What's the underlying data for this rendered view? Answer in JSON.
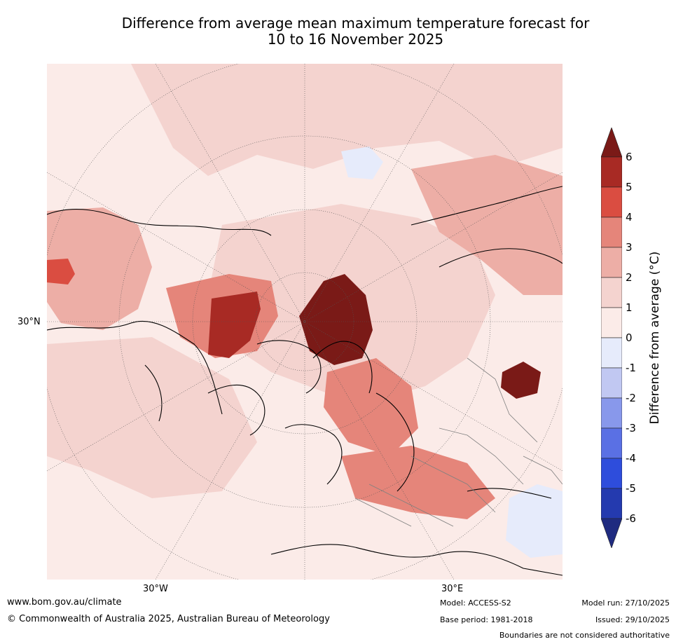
{
  "title": {
    "line1": "Difference from average mean maximum temperature forecast for",
    "line2": "10 to 16 November 2025"
  },
  "map": {
    "lat_label": "30°N",
    "lon_labels": [
      "30°W",
      "30°E"
    ],
    "land_outline_color": "#000000",
    "border_color": "#808080",
    "regions": [
      {
        "name": "north-pacific-anomaly",
        "class": 1
      },
      {
        "name": "central-arctic-anomaly",
        "class": 1
      },
      {
        "name": "alaska-anomaly",
        "class": 2
      },
      {
        "name": "west-pacific-warm-spot",
        "class": 4
      },
      {
        "name": "canadian-archipelago-anomaly",
        "class": 3
      },
      {
        "name": "barents-kara-warm-core",
        "class": 6
      },
      {
        "name": "greenland-west-coast-anomaly",
        "class": 5
      },
      {
        "name": "scandinavia-russia-anomaly",
        "class": 3
      },
      {
        "name": "siberia-anomaly",
        "class": 2
      },
      {
        "name": "central-asia-warm-core",
        "class": 6
      },
      {
        "name": "eastern-europe-anomaly",
        "class": 3
      },
      {
        "name": "north-america-anomaly",
        "class": 1
      },
      {
        "name": "north-africa-anomaly",
        "class": 0
      },
      {
        "name": "pacific-cool-patch",
        "class": -1
      },
      {
        "name": "arabia-cool-patch",
        "class": -1
      }
    ]
  },
  "colorbar": {
    "label": "Difference from average (°C)",
    "ticks": [
      "6",
      "5",
      "4",
      "3",
      "2",
      "1",
      "0",
      "-1",
      "-2",
      "-3",
      "-4",
      "-5",
      "-6"
    ],
    "colors": {
      "above6": "#7a1a17",
      "5to6": "#a82a24",
      "4to5": "#da4d41",
      "3to4": "#e5857a",
      "2to3": "#edaea6",
      "1to2": "#f4d3cf",
      "0to1": "#fbebe8",
      "-1to0": "#e6ebfb",
      "-2to-1": "#c1c8f2",
      "-3to-2": "#8898eb",
      "-4to-3": "#5a70e4",
      "-5to-4": "#2e4ddc",
      "-6to-5": "#243aaf",
      "below-6": "#1f2b80"
    }
  },
  "footer": {
    "url": "www.bom.gov.au/climate",
    "copyright": "© Commonwealth of Australia 2025, Australian Bureau of Meteorology",
    "model": "Model: ACCESS-S2",
    "base_period": "Base period: 1981-2018",
    "model_run": "Model run: 27/10/2025",
    "issued": "Issued: 29/10/2025",
    "disclaimer": "Boundaries are not considered authoritative"
  }
}
